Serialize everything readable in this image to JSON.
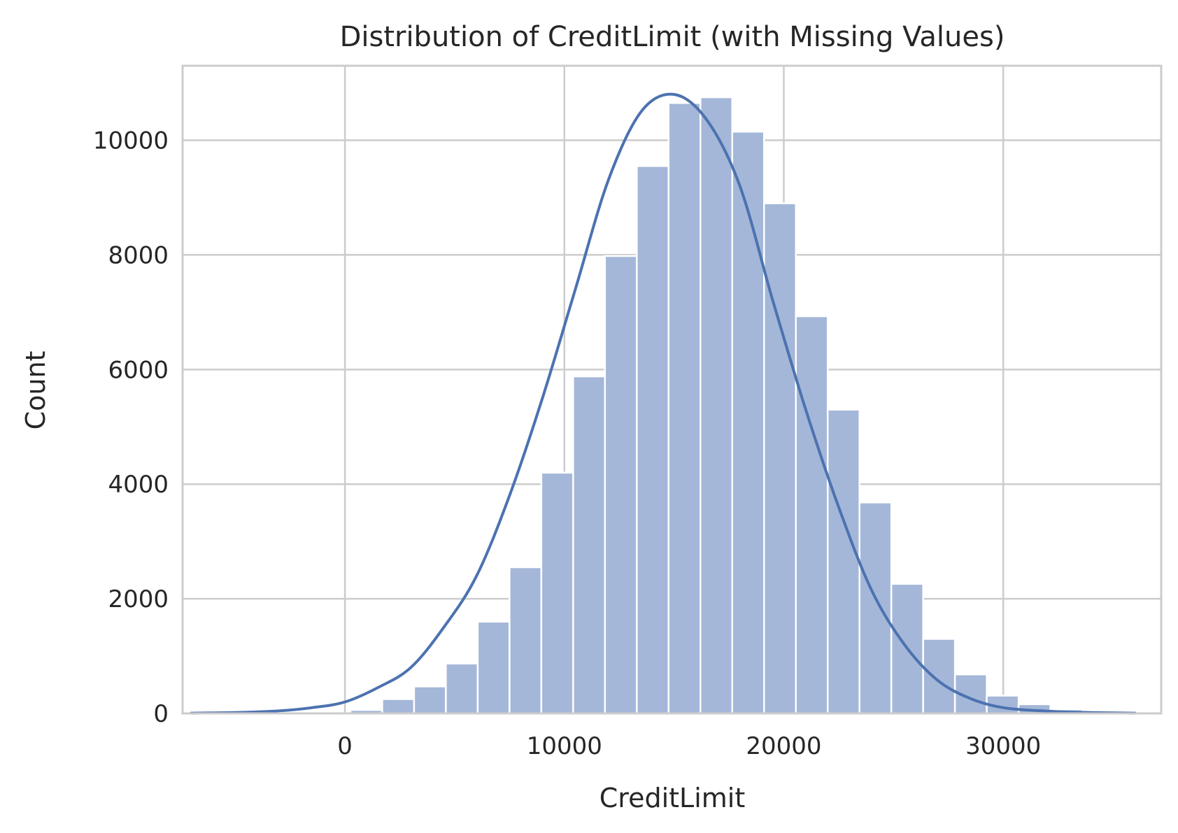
{
  "chart_data": {
    "type": "bar",
    "title": "Distribution of CreditLimit (with Missing Values)",
    "xlabel": "CreditLimit",
    "ylabel": "Count",
    "xlim": [
      -7400,
      37200
    ],
    "ylim": [
      0,
      11300
    ],
    "x_ticks": [
      0,
      10000,
      20000,
      30000
    ],
    "x_tick_labels": [
      "0",
      "10000",
      "20000",
      "30000"
    ],
    "y_ticks": [
      0,
      2000,
      4000,
      6000,
      8000,
      10000
    ],
    "y_tick_labels": [
      "0",
      "2000",
      "4000",
      "6000",
      "8000",
      "10000"
    ],
    "grid": true,
    "bin_start": -7000,
    "bin_width": 1450,
    "values": [
      0,
      0,
      0,
      0,
      0,
      60,
      250,
      470,
      870,
      1600,
      2550,
      4200,
      5880,
      7980,
      9550,
      10650,
      10750,
      10150,
      8900,
      6930,
      5300,
      3680,
      2260,
      1300,
      680,
      310,
      160,
      70,
      30,
      20
    ],
    "kde": {
      "x": [
        -7000,
        -5000,
        -3000,
        -1500,
        0,
        1500,
        3000,
        4500,
        6000,
        7500,
        9000,
        10500,
        12000,
        13500,
        15000,
        16500,
        18000,
        19500,
        21000,
        22500,
        24000,
        25500,
        27000,
        28500,
        30000,
        32000,
        34000,
        36000
      ],
      "y": [
        5,
        15,
        45,
        100,
        200,
        450,
        800,
        1500,
        2400,
        3800,
        5500,
        7400,
        9300,
        10500,
        10800,
        10350,
        9200,
        7200,
        5300,
        3600,
        2150,
        1200,
        580,
        260,
        100,
        40,
        15,
        5
      ]
    },
    "colors": {
      "bar_fill": "#a4b7d8",
      "line": "#4c72b0",
      "grid": "#cccccc",
      "frame": "#cccccc",
      "text": "#262626"
    }
  }
}
